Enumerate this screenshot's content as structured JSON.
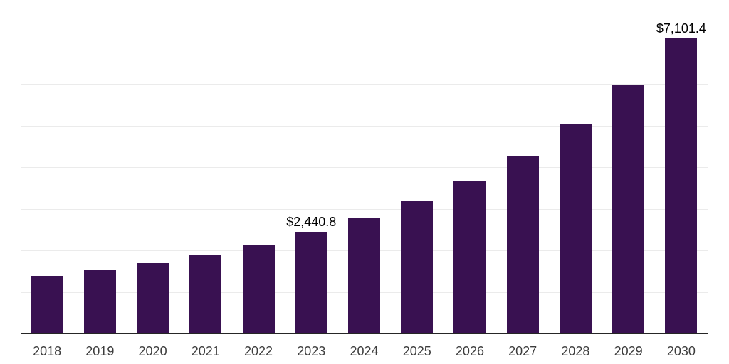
{
  "chart_data": {
    "type": "bar",
    "title": "",
    "xlabel": "",
    "ylabel": "",
    "categories": [
      "2018",
      "2019",
      "2020",
      "2021",
      "2022",
      "2023",
      "2024",
      "2025",
      "2026",
      "2027",
      "2028",
      "2029",
      "2030"
    ],
    "values": [
      1380,
      1515,
      1695,
      1905,
      2145,
      2440.8,
      2770,
      3180,
      3680,
      4280,
      5025,
      5970,
      7101.4
    ],
    "ylim": [
      0,
      8000
    ],
    "gridline_interval": 1000,
    "grid": true,
    "legend": "none",
    "y_axis_labels_visible": false,
    "data_labels": [
      {
        "category": "2023",
        "text": "$2,440.8"
      },
      {
        "category": "2030",
        "text": "$7,101.4"
      }
    ],
    "colors": {
      "bar": "#391151",
      "grid": "#ebebeb",
      "axis": "#262626",
      "tick_text": "#3d3d3d",
      "label_text": "#000000",
      "background": "#ffffff"
    }
  }
}
